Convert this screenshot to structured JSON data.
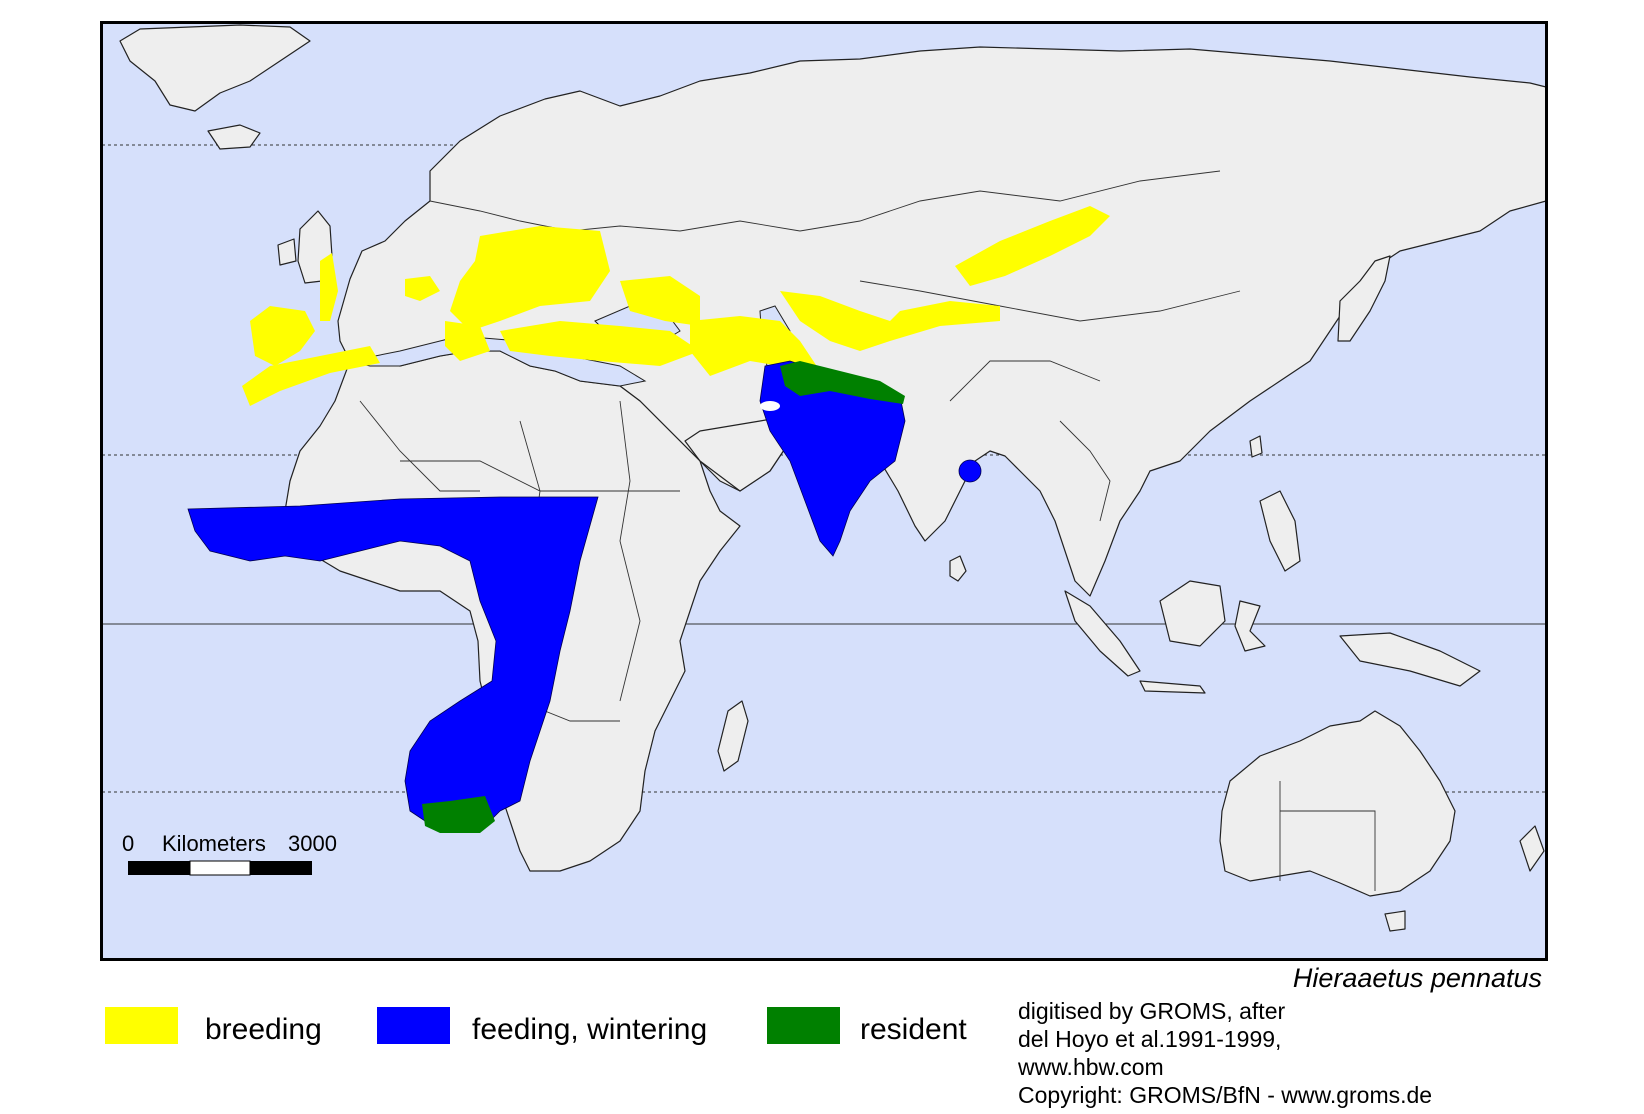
{
  "map": {
    "ocean_color": "#d6e0fb",
    "land_color": "#eeeeee",
    "breeding_color": "#ffff00",
    "wintering_color": "#0000ff",
    "resident_color": "#008000",
    "scale": {
      "start": "0",
      "unit": "Kilometers",
      "end": "3000"
    }
  },
  "species": "Hieraaetus pennatus",
  "legend": [
    {
      "label": "breeding",
      "color": "#ffff00"
    },
    {
      "label": "feeding, wintering",
      "color": "#0000ff"
    },
    {
      "label": "resident",
      "color": "#008000"
    }
  ],
  "credits": [
    "digitised by GROMS, after",
    "del Hoyo et al.1991-1999,",
    "www.hbw.com",
    "Copyright: GROMS/BfN - www.groms.de"
  ]
}
